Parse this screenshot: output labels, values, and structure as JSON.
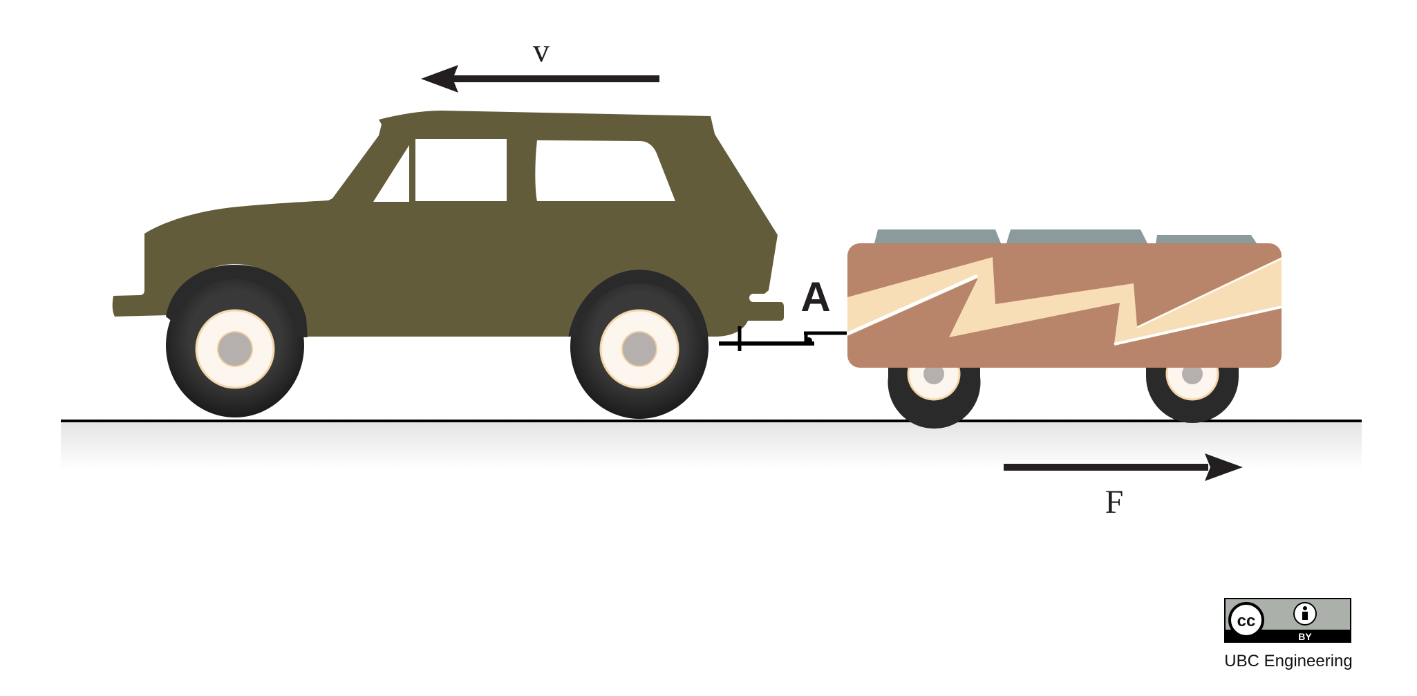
{
  "labels": {
    "velocity": "v",
    "force": "F",
    "hitch_point": "A"
  },
  "license": {
    "cc": "cc",
    "by": "BY",
    "credit": "UBC Engineering"
  },
  "colors": {
    "car_body": "#635c3a",
    "trailer_body": "#b8846a",
    "trailer_stripe": "#f7deb6",
    "cargo": "#8b9b9d",
    "tire": "#2b2a2a",
    "hub": "#fdf6ee",
    "hub_center": "#b5b0ae",
    "arrow": "#231f20",
    "ground": "#000000",
    "cc_badge": "#abb1aa"
  },
  "icons": {
    "creative_commons": "cc-icon",
    "attribution": "person-icon"
  }
}
